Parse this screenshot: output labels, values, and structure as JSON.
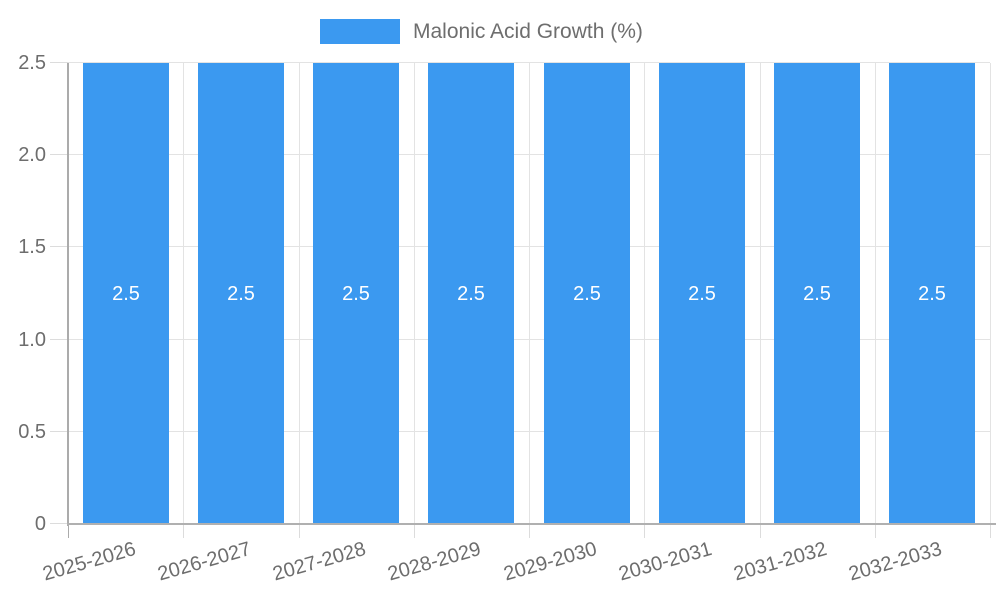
{
  "chart_data": {
    "type": "bar",
    "title": "",
    "categories": [
      "2025-2026",
      "2026-2027",
      "2027-2028",
      "2028-2029",
      "2029-2030",
      "2030-2031",
      "2031-2032",
      "2032-2033"
    ],
    "series": [
      {
        "name": "Malonic Acid Growth (%)",
        "color": "#3b99f0",
        "values": [
          2.5,
          2.5,
          2.5,
          2.5,
          2.5,
          2.5,
          2.5,
          2.5
        ],
        "value_labels": [
          "2.5",
          "2.5",
          "2.5",
          "2.5",
          "2.5",
          "2.5",
          "2.5",
          "2.5"
        ],
        "value_label_color": "#ffffff"
      }
    ],
    "xlabel": "",
    "ylabel": "",
    "ylim": [
      0,
      2.5
    ],
    "yticks": [
      0,
      0.5,
      1.0,
      1.5,
      2.0,
      2.5
    ],
    "ytick_labels": [
      "0",
      "0.5",
      "1.0",
      "1.5",
      "2.0",
      "2.5"
    ],
    "grid": true,
    "legend_position": "top",
    "tick_label_color": "#6d6d6d"
  }
}
